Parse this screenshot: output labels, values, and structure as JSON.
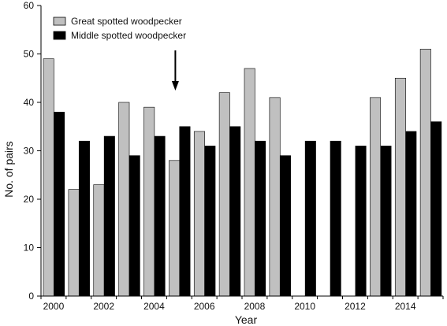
{
  "chart_data": {
    "type": "bar",
    "xlabel": "Year",
    "ylabel": "No. of pairs",
    "ylim": [
      0,
      60
    ],
    "yticks": [
      0,
      10,
      20,
      30,
      40,
      50,
      60
    ],
    "x": [
      2000,
      2001,
      2002,
      2003,
      2004,
      2005,
      2006,
      2007,
      2008,
      2009,
      2010,
      2011,
      2012,
      2013,
      2014,
      2015
    ],
    "xtick_labels": [
      "2000",
      "2002",
      "2004",
      "2006",
      "2008",
      "2010",
      "2012",
      "2014"
    ],
    "series": [
      {
        "name": "Great spotted woodpecker",
        "color": "#c0c0c0",
        "values": [
          49,
          22,
          23,
          40,
          39,
          28,
          34,
          42,
          47,
          41,
          null,
          null,
          null,
          41,
          45,
          51
        ]
      },
      {
        "name": "Middle spotted woodpecker",
        "color": "#000000",
        "values": [
          38,
          32,
          33,
          29,
          33,
          35,
          31,
          35,
          32,
          29,
          32,
          32,
          31,
          31,
          34,
          36
        ]
      }
    ],
    "annotation": {
      "type": "arrow",
      "year": 2005
    },
    "legend_position": "top-left",
    "grid": false
  }
}
